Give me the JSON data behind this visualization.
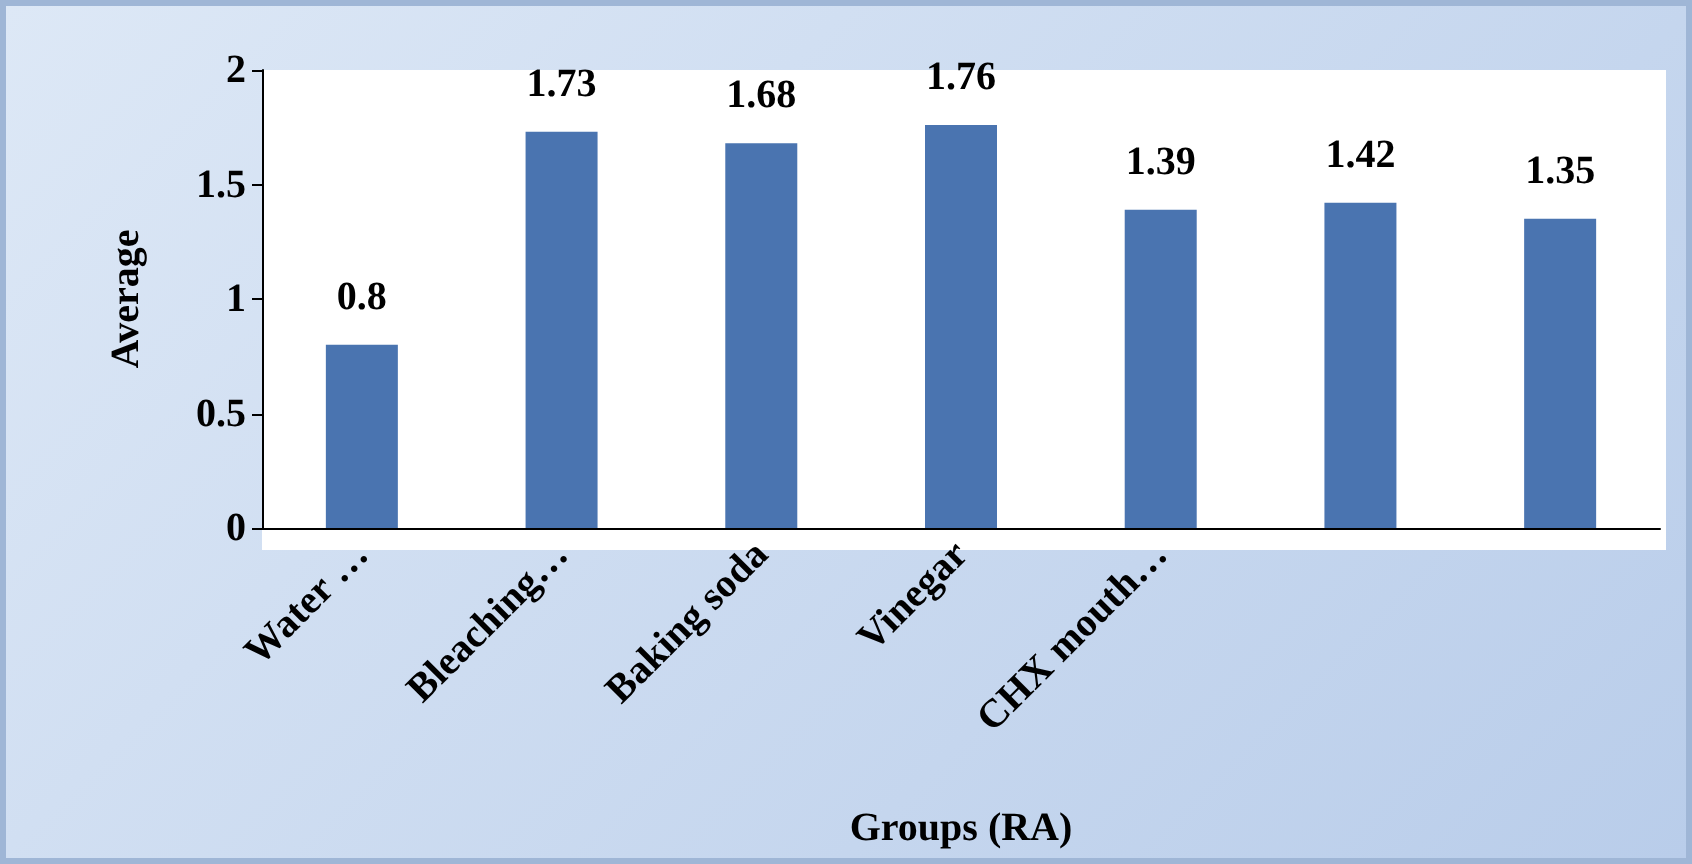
{
  "chart_data": {
    "type": "bar",
    "xlabel": "Groups (RA)",
    "ylabel": "Average",
    "categories": [
      "Water …",
      "Bleaching…",
      "Baking soda",
      "Vinegar",
      "CHX mouth…",
      null,
      null
    ],
    "values": [
      0.8,
      1.73,
      1.68,
      1.76,
      1.39,
      1.42,
      1.35
    ],
    "color": "#4a74b0",
    "ylim": [
      0,
      2
    ],
    "yticks": [
      0,
      0.5,
      1,
      1.5,
      2
    ],
    "grid": false,
    "data_labels": true
  }
}
